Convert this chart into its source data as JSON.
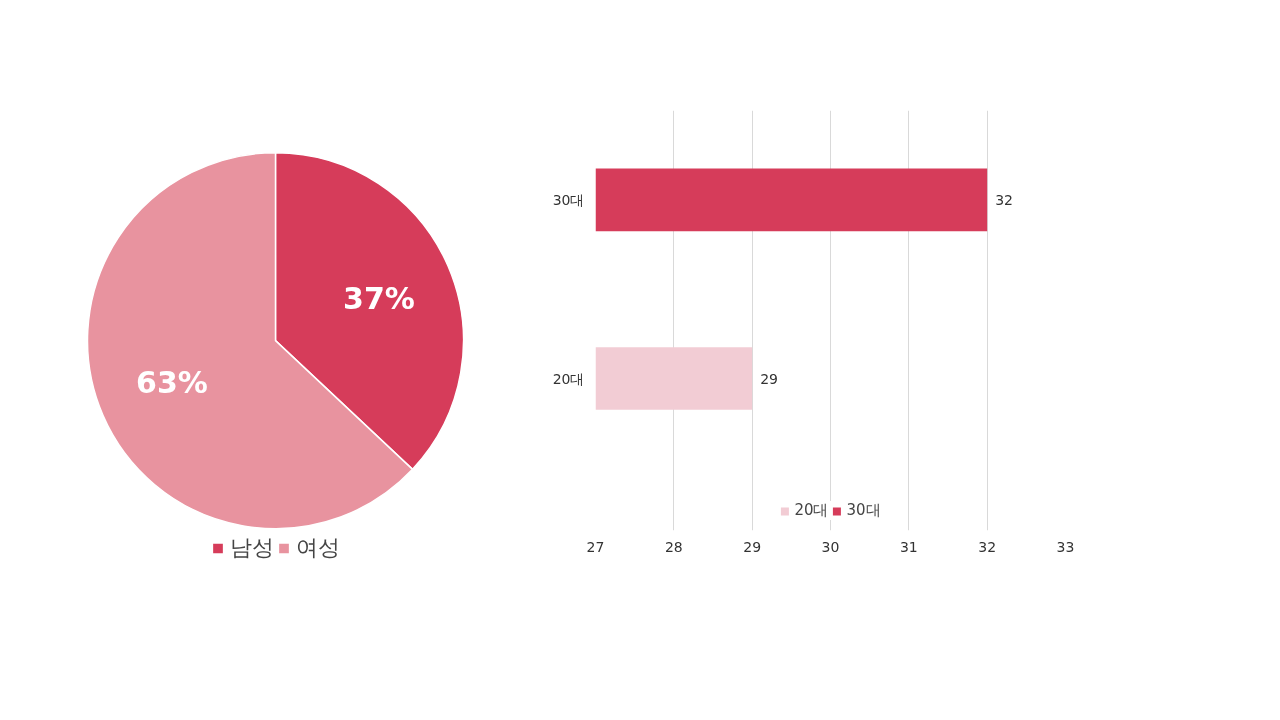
{
  "chart_data": [
    {
      "type": "pie",
      "categories": [
        "남성",
        "여성"
      ],
      "values": [
        37,
        63
      ],
      "value_labels": [
        "37%",
        "63%"
      ],
      "colors": [
        "#d63c5a",
        "#e8939f"
      ],
      "legend": "bottom"
    },
    {
      "type": "bar",
      "orientation": "horizontal",
      "categories": [
        "30대",
        "20대"
      ],
      "series": [
        {
          "name": "20대",
          "color": "#f2ccd4",
          "values": [
            null,
            29
          ]
        },
        {
          "name": "30대",
          "color": "#d63c5a",
          "values": [
            32,
            null
          ]
        }
      ],
      "xlim": [
        27,
        33
      ],
      "xticks": [
        27,
        28,
        29,
        30,
        31,
        32,
        33
      ],
      "grid": "x",
      "data_labels": true,
      "legend": "bottom"
    }
  ]
}
